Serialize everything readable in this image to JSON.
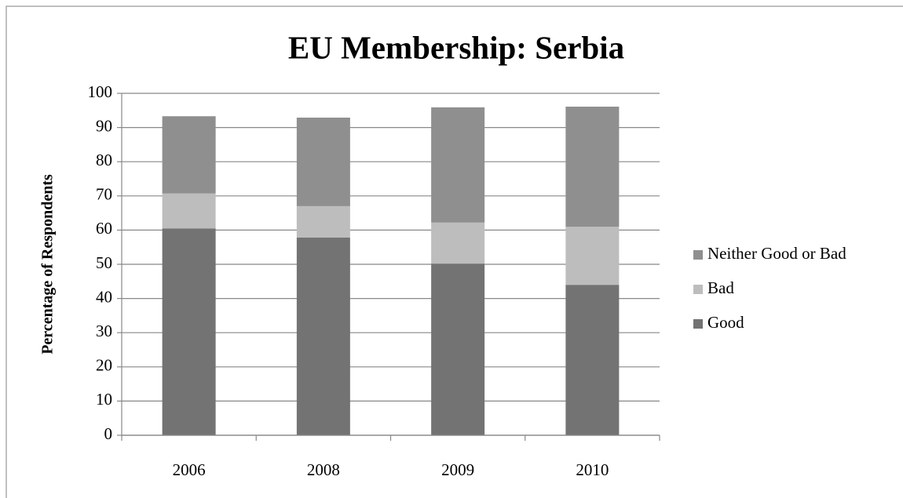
{
  "chart_data": {
    "type": "stacked_bar",
    "title": "EU Membership: Serbia",
    "y_label": "Percentage of Respondents",
    "categories": [
      "2006",
      "2008",
      "2009",
      "2010"
    ],
    "series": [
      {
        "name": "Good",
        "color": "#737373",
        "values": [
          60.5,
          57.8,
          50.2,
          44.0
        ]
      },
      {
        "name": "Bad",
        "color": "#bdbdbd",
        "values": [
          10.2,
          9.2,
          12.0,
          17.0
        ]
      },
      {
        "name": "Neither Good or Bad",
        "color": "#8f8f8f",
        "values": [
          22.6,
          25.9,
          33.7,
          35.1
        ]
      }
    ],
    "ylim": [
      0,
      100
    ],
    "yticks": [
      0,
      10,
      20,
      30,
      40,
      50,
      60,
      70,
      80,
      90,
      100
    ],
    "grid": true,
    "legend": "right"
  }
}
